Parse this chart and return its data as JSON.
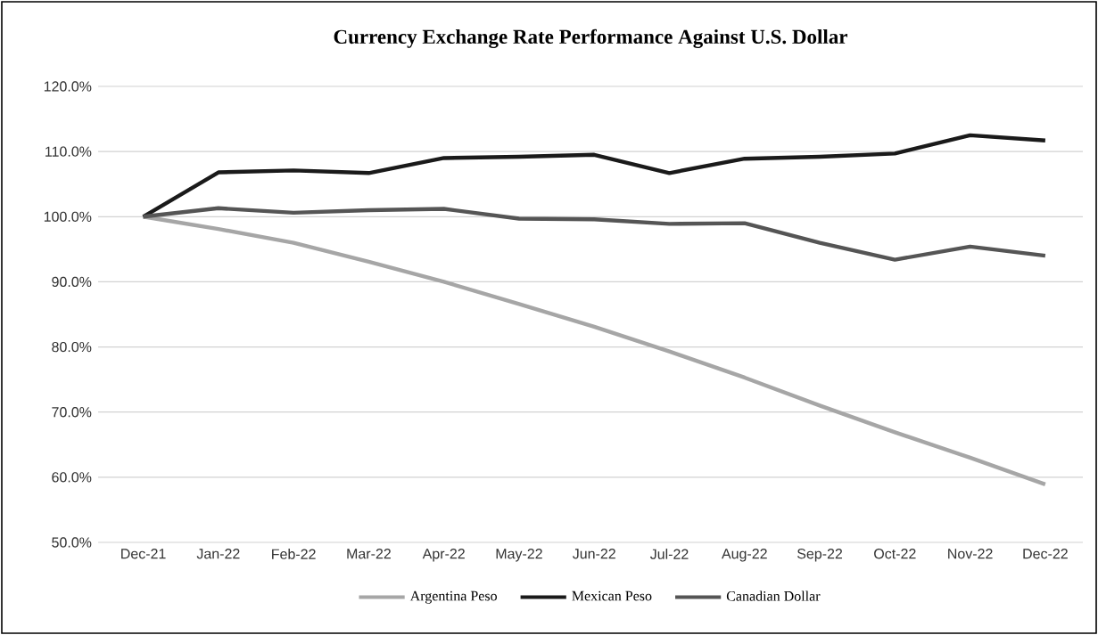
{
  "chart_data": {
    "type": "line",
    "title": "Currency Exchange Rate Performance Against U.S. Dollar",
    "categories": [
      "Dec-21",
      "Jan-22",
      "Feb-22",
      "Mar-22",
      "Apr-22",
      "May-22",
      "Jun-22",
      "Jul-22",
      "Aug-22",
      "Sep-22",
      "Oct-22",
      "Nov-22",
      "Dec-22"
    ],
    "series": [
      {
        "name": "Argentina Peso",
        "color": "#a6a6a6",
        "values": [
          100,
          98.1,
          96.0,
          93.1,
          90.0,
          86.6,
          83.1,
          79.3,
          75.3,
          71.0,
          66.9,
          63.0,
          58.9
        ]
      },
      {
        "name": "Mexican Peso",
        "color": "#1a1a1a",
        "values": [
          100,
          106.8,
          107.1,
          106.7,
          109.0,
          109.2,
          109.5,
          106.7,
          108.9,
          109.2,
          109.7,
          112.5,
          111.7
        ]
      },
      {
        "name": "Canadian Dollar",
        "color": "#555555",
        "values": [
          100,
          101.3,
          100.6,
          101.0,
          101.2,
          99.7,
          99.6,
          98.9,
          99.0,
          96.0,
          93.4,
          95.4,
          94.0
        ]
      }
    ],
    "ylim": [
      50,
      120
    ],
    "yticks": [
      {
        "value": 50,
        "label": "50.0%"
      },
      {
        "value": 60,
        "label": "60.0%"
      },
      {
        "value": 70,
        "label": "70.0%"
      },
      {
        "value": 80,
        "label": "80.0%"
      },
      {
        "value": 90,
        "label": "90.0%"
      },
      {
        "value": 100,
        "label": "100.0%"
      },
      {
        "value": 110,
        "label": "110.0%"
      },
      {
        "value": 120,
        "label": "120.0%"
      }
    ],
    "grid": "y",
    "legend": "bottom",
    "marker": "none",
    "line_style": "solid"
  }
}
